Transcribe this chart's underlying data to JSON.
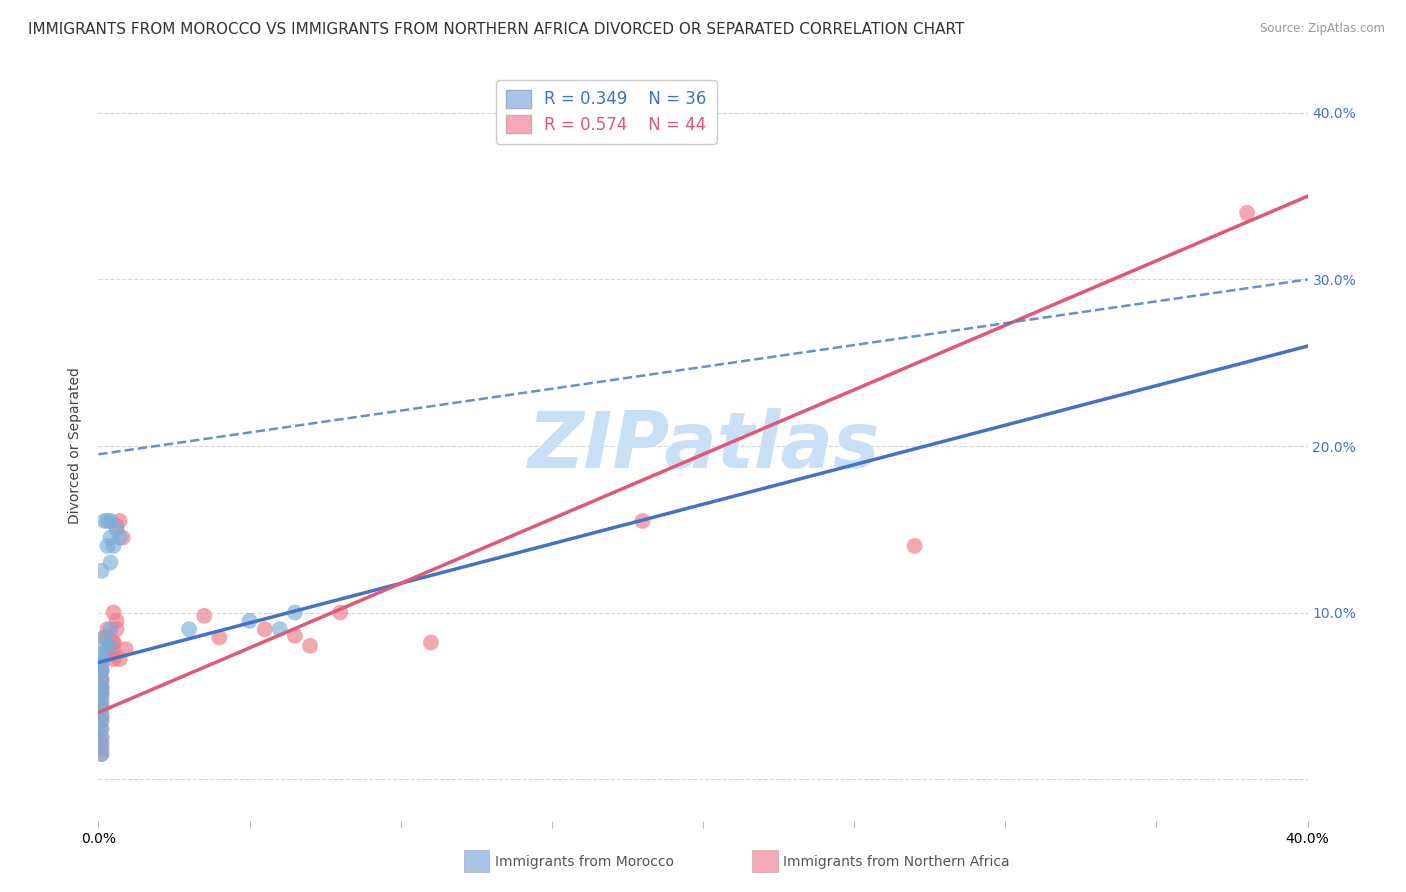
{
  "title": "IMMIGRANTS FROM MOROCCO VS IMMIGRANTS FROM NORTHERN AFRICA DIVORCED OR SEPARATED CORRELATION CHART",
  "source": "Source: ZipAtlas.com",
  "ylabel": "Divorced or Separated",
  "xlim": [
    0.0,
    0.4
  ],
  "ylim": [
    -0.025,
    0.425
  ],
  "xticks": [
    0.0,
    0.05,
    0.1,
    0.15,
    0.2,
    0.25,
    0.3,
    0.35,
    0.4
  ],
  "yticks": [
    0.0,
    0.1,
    0.2,
    0.3,
    0.4
  ],
  "xtick_labels_show": [
    "0.0%",
    "",
    "",
    "",
    "",
    "",
    "",
    "",
    "40.0%"
  ],
  "ytick_labels_right": [
    "",
    "10.0%",
    "20.0%",
    "30.0%",
    "40.0%"
  ],
  "legend_entries": [
    {
      "color": "#a8c4e8",
      "R": 0.349,
      "N": 36
    },
    {
      "color": "#f4a8b8",
      "R": 0.574,
      "N": 44
    }
  ],
  "morocco_color": "#7aaed8",
  "northern_africa_color": "#f07888",
  "morocco_scatter": [
    [
      0.001,
      0.125
    ],
    [
      0.003,
      0.14
    ],
    [
      0.003,
      0.155
    ],
    [
      0.004,
      0.155
    ],
    [
      0.004,
      0.145
    ],
    [
      0.005,
      0.14
    ],
    [
      0.004,
      0.13
    ],
    [
      0.006,
      0.15
    ],
    [
      0.007,
      0.145
    ],
    [
      0.002,
      0.155
    ],
    [
      0.004,
      0.08
    ],
    [
      0.004,
      0.09
    ],
    [
      0.002,
      0.085
    ],
    [
      0.002,
      0.08
    ],
    [
      0.001,
      0.075
    ],
    [
      0.001,
      0.072
    ],
    [
      0.001,
      0.07
    ],
    [
      0.001,
      0.065
    ],
    [
      0.001,
      0.065
    ],
    [
      0.001,
      0.06
    ],
    [
      0.001,
      0.055
    ],
    [
      0.001,
      0.055
    ],
    [
      0.001,
      0.052
    ],
    [
      0.001,
      0.048
    ],
    [
      0.001,
      0.045
    ],
    [
      0.001,
      0.042
    ],
    [
      0.001,
      0.038
    ],
    [
      0.001,
      0.035
    ],
    [
      0.001,
      0.03
    ],
    [
      0.001,
      0.025
    ],
    [
      0.001,
      0.02
    ],
    [
      0.001,
      0.015
    ],
    [
      0.03,
      0.09
    ],
    [
      0.05,
      0.095
    ],
    [
      0.06,
      0.09
    ],
    [
      0.065,
      0.1
    ]
  ],
  "northern_africa_scatter": [
    [
      0.001,
      0.065
    ],
    [
      0.001,
      0.068
    ],
    [
      0.001,
      0.06
    ],
    [
      0.001,
      0.058
    ],
    [
      0.001,
      0.055
    ],
    [
      0.001,
      0.052
    ],
    [
      0.001,
      0.05
    ],
    [
      0.001,
      0.045
    ],
    [
      0.001,
      0.042
    ],
    [
      0.001,
      0.038
    ],
    [
      0.001,
      0.035
    ],
    [
      0.001,
      0.03
    ],
    [
      0.001,
      0.025
    ],
    [
      0.001,
      0.022
    ],
    [
      0.001,
      0.018
    ],
    [
      0.001,
      0.015
    ],
    [
      0.002,
      0.085
    ],
    [
      0.003,
      0.09
    ],
    [
      0.003,
      0.085
    ],
    [
      0.004,
      0.08
    ],
    [
      0.003,
      0.078
    ],
    [
      0.004,
      0.075
    ],
    [
      0.005,
      0.082
    ],
    [
      0.005,
      0.072
    ],
    [
      0.006,
      0.095
    ],
    [
      0.006,
      0.152
    ],
    [
      0.007,
      0.155
    ],
    [
      0.008,
      0.145
    ],
    [
      0.006,
      0.09
    ],
    [
      0.005,
      0.1
    ],
    [
      0.005,
      0.082
    ],
    [
      0.005,
      0.078
    ],
    [
      0.009,
      0.078
    ],
    [
      0.007,
      0.072
    ],
    [
      0.035,
      0.098
    ],
    [
      0.04,
      0.085
    ],
    [
      0.055,
      0.09
    ],
    [
      0.065,
      0.086
    ],
    [
      0.07,
      0.08
    ],
    [
      0.08,
      0.1
    ],
    [
      0.11,
      0.082
    ],
    [
      0.18,
      0.155
    ],
    [
      0.27,
      0.14
    ],
    [
      0.38,
      0.34
    ]
  ],
  "morocco_line_x": [
    0.0,
    0.4
  ],
  "morocco_line_y": [
    0.07,
    0.26
  ],
  "na_line_x": [
    0.0,
    0.4
  ],
  "na_line_y": [
    0.04,
    0.35
  ],
  "dashed_line_x": [
    0.0,
    0.4
  ],
  "dashed_line_y": [
    0.195,
    0.3
  ],
  "morocco_line_color": "#4472c4",
  "na_line_color": "#e05878",
  "dashed_line_color": "#4472c4",
  "watermark": "ZIPatlas",
  "watermark_color": "#c8dff5",
  "background_color": "#ffffff",
  "grid_color": "#cccccc",
  "title_fontsize": 11,
  "axis_label_fontsize": 10,
  "tick_fontsize": 10,
  "legend_text_color_blue": "#4472c4",
  "legend_text_color_pink": "#e05878"
}
